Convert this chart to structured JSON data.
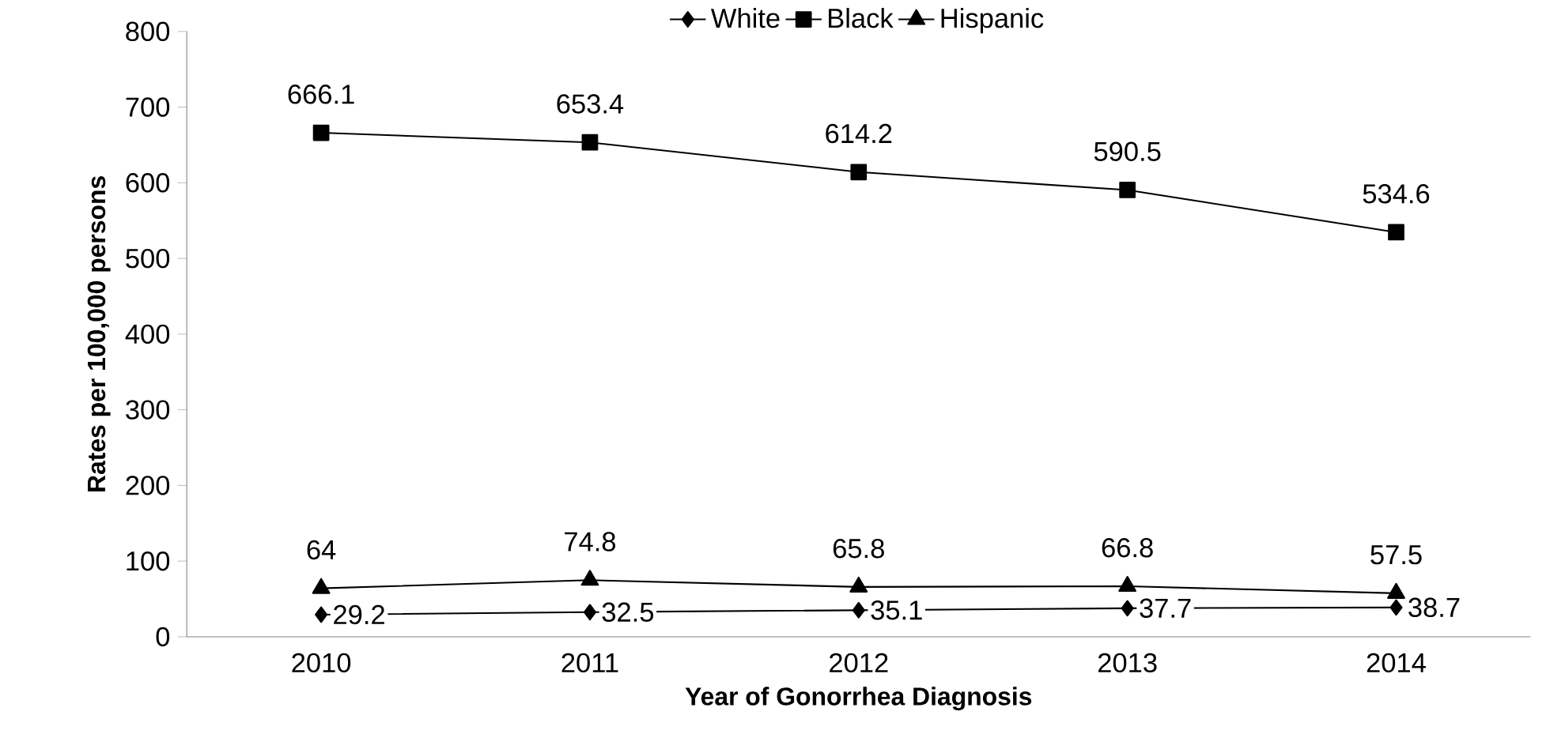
{
  "chart_data": {
    "type": "line",
    "xlabel": "Year of Gonorrhea Diagnosis",
    "ylabel": "Rates per 100,000 persons",
    "categories": [
      "2010",
      "2011",
      "2012",
      "2013",
      "2014"
    ],
    "series": [
      {
        "name": "White",
        "color": "#000000",
        "marker": "diamond",
        "values": [
          29.2,
          32.5,
          35.1,
          37.7,
          38.7
        ]
      },
      {
        "name": "Black",
        "color": "#000000",
        "marker": "square",
        "values": [
          666.1,
          653.4,
          614.2,
          590.5,
          534.6
        ]
      },
      {
        "name": "Hispanic",
        "color": "#000000",
        "marker": "triangle",
        "values": [
          64,
          74.8,
          65.8,
          66.8,
          57.5
        ]
      }
    ],
    "ylim": [
      0,
      800
    ],
    "yticks": [
      0,
      100,
      200,
      300,
      400,
      500,
      600,
      700,
      800
    ],
    "data_labels": true,
    "legend": "top",
    "grid": false,
    "line_style": "solid"
  }
}
